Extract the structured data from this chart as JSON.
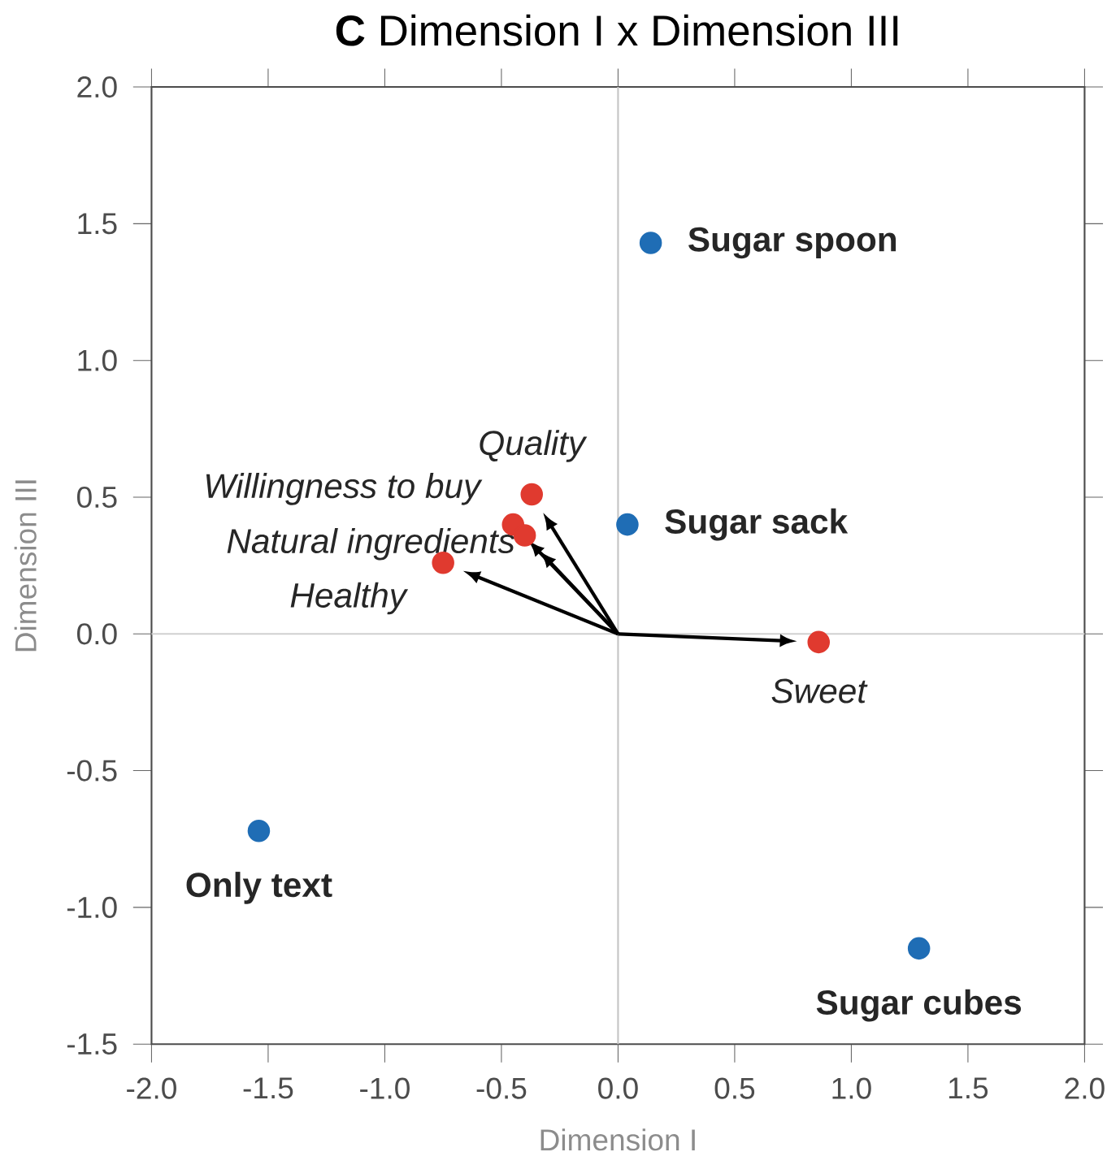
{
  "chart_data": {
    "type": "scatter",
    "title": "**C** Dimension I x Dimension III",
    "xlabel": "Dimension I",
    "ylabel": "Dimension III",
    "xlim": [
      -2,
      2
    ],
    "ylim": [
      -1.5,
      2
    ],
    "xticks": [
      {
        "value": -2,
        "label": "-2.0"
      },
      {
        "value": -1.5,
        "label": "-1.5"
      },
      {
        "value": -1,
        "label": "-1.0"
      },
      {
        "value": -0.5,
        "label": "-0.5"
      },
      {
        "value": 0,
        "label": "0.0"
      },
      {
        "value": 0.5,
        "label": "0.5"
      },
      {
        "value": 1,
        "label": "1.0"
      },
      {
        "value": 1.5,
        "label": "1.5"
      },
      {
        "value": 2,
        "label": "2.0"
      }
    ],
    "yticks": [
      {
        "value": -1.5,
        "label": "-1.5"
      },
      {
        "value": -1,
        "label": "-1.0"
      },
      {
        "value": -0.5,
        "label": "-0.5"
      },
      {
        "value": 0,
        "label": "0.0"
      },
      {
        "value": 0.5,
        "label": "0.5"
      },
      {
        "value": 1,
        "label": "1.0"
      },
      {
        "value": 1.5,
        "label": "1.5"
      },
      {
        "value": 2,
        "label": "2.0"
      }
    ],
    "grid": false,
    "ref_lines": [
      {
        "axis": "x",
        "value": 0,
        "color": "#c4c4c4"
      },
      {
        "axis": "y",
        "value": 0,
        "color": "#d0d0d0"
      }
    ],
    "series": [
      {
        "name": "Sugar spoon",
        "color": "#1f6db5",
        "x": [
          0.14
        ],
        "values": [
          1.43
        ]
      },
      {
        "name": "Sugar sack",
        "color": "#1f6db5",
        "x": [
          0.04
        ],
        "values": [
          0.4
        ]
      },
      {
        "name": "Only text",
        "color": "#1f6db5",
        "x": [
          -1.54
        ],
        "values": [
          -0.72
        ]
      },
      {
        "name": "Sugar cubes",
        "color": "#1f6db5",
        "x": [
          1.29
        ],
        "values": [
          -1.15
        ]
      },
      {
        "name": "Quality",
        "color": "#e03a2f",
        "x": [
          -0.37
        ],
        "values": [
          0.51
        ]
      },
      {
        "name": "Willingness to buy",
        "color": "#e03a2f",
        "x": [
          -0.45
        ],
        "values": [
          0.4
        ]
      },
      {
        "name": "Natural ingredients",
        "color": "#e03a2f",
        "x": [
          -0.4
        ],
        "values": [
          0.36
        ]
      },
      {
        "name": "Healthy",
        "color": "#e03a2f",
        "x": [
          -0.75
        ],
        "values": [
          0.26
        ]
      },
      {
        "name": "Sweet",
        "color": "#e03a2f",
        "x": [
          0.86
        ],
        "values": [
          -0.03
        ]
      }
    ]
  }
}
